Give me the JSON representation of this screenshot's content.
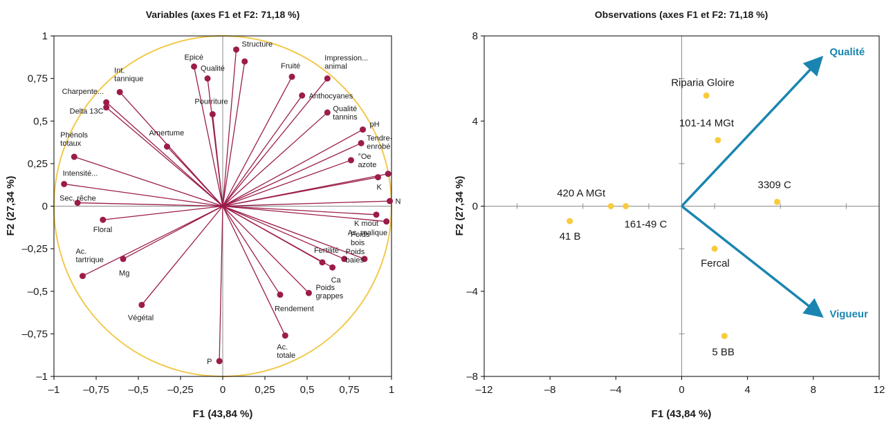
{
  "colors": {
    "vector": "#9b1c4a",
    "circle": "#f2c94c",
    "observation": "#f7cb3d",
    "arrow": "#1a85b0",
    "axis": "#8a8a8a"
  },
  "chart_data": [
    {
      "type": "scatter",
      "title": "Variables (axes F1 et F2: 71,18 %)",
      "xlabel": "F1 (43,84 %)",
      "ylabel": "F2 (27,34 %)",
      "xlim": [
        -1,
        1
      ],
      "ylim": [
        -1,
        1
      ],
      "xticks": [
        "–1",
        "–0,75",
        "–0,5",
        "–0,25",
        "0",
        "0,25",
        "0,5",
        "0,75",
        "1"
      ],
      "yticks": [
        "1",
        "0,75",
        "0,5",
        "0,25",
        "0",
        "–0,25",
        "–0,5",
        "–0,75",
        "–1"
      ],
      "unit_circle": true,
      "points": [
        {
          "label": "Structure",
          "x": 0.08,
          "y": 0.92
        },
        {
          "label": "Structure-2",
          "x": 0.13,
          "y": 0.85,
          "unlabeled": true
        },
        {
          "label": "Epicé",
          "x": -0.17,
          "y": 0.82
        },
        {
          "label": "Qualité",
          "x": -0.09,
          "y": 0.75
        },
        {
          "label": "Int. tannique",
          "x": -0.61,
          "y": 0.67
        },
        {
          "label": "Charpente...",
          "x": -0.69,
          "y": 0.61
        },
        {
          "label": "Delta 13C",
          "x": -0.69,
          "y": 0.58
        },
        {
          "label": "Pourriture",
          "x": -0.06,
          "y": 0.54
        },
        {
          "label": "Fruité",
          "x": 0.41,
          "y": 0.76
        },
        {
          "label": "Impression... animal",
          "x": 0.62,
          "y": 0.75
        },
        {
          "label": "Anthocyanes",
          "x": 0.47,
          "y": 0.65
        },
        {
          "label": "Qualité tannins",
          "x": 0.62,
          "y": 0.55
        },
        {
          "label": "pH",
          "x": 0.83,
          "y": 0.45
        },
        {
          "label": "Tendre-enrobé",
          "x": 0.82,
          "y": 0.37
        },
        {
          "label": "°Oe azote",
          "x": 0.76,
          "y": 0.27
        },
        {
          "label": "Amertume",
          "x": -0.33,
          "y": 0.35
        },
        {
          "label": "Phénols totaux",
          "x": -0.88,
          "y": 0.29
        },
        {
          "label": "Intensité...",
          "x": -0.94,
          "y": 0.13
        },
        {
          "label": "Sec, rêche",
          "x": -0.86,
          "y": 0.02
        },
        {
          "label": "K",
          "x": 0.92,
          "y": 0.17
        },
        {
          "label": "K-2",
          "x": 0.98,
          "y": 0.19,
          "unlabeled": true
        },
        {
          "label": "N",
          "x": 0.99,
          "y": 0.03
        },
        {
          "label": "K moût",
          "x": 0.91,
          "y": -0.05
        },
        {
          "label": "Ac. malique",
          "x": 0.97,
          "y": -0.09
        },
        {
          "label": "Floral",
          "x": -0.71,
          "y": -0.08
        },
        {
          "label": "Ac. tartrique",
          "x": -0.83,
          "y": -0.41
        },
        {
          "label": "Mg",
          "x": -0.59,
          "y": -0.31
        },
        {
          "label": "Fertilité",
          "x": 0.59,
          "y": -0.33
        },
        {
          "label": "Ca",
          "x": 0.65,
          "y": -0.36
        },
        {
          "label": "Poids bois",
          "x": 0.84,
          "y": -0.31
        },
        {
          "label": "Poids baies",
          "x": 0.72,
          "y": -0.31
        },
        {
          "label": "Poids grappes",
          "x": 0.51,
          "y": -0.51
        },
        {
          "label": "Rendement",
          "x": 0.34,
          "y": -0.52
        },
        {
          "label": "Végétal",
          "x": -0.48,
          "y": -0.58
        },
        {
          "label": "Ac. totale",
          "x": 0.37,
          "y": -0.76
        },
        {
          "label": "P",
          "x": -0.02,
          "y": -0.91
        }
      ]
    },
    {
      "type": "scatter",
      "title": "Observations (axes F1 et F2: 71,18 %)",
      "xlabel": "F1 (43,84 %)",
      "ylabel": "F2 (27,34 %)",
      "xlim": [
        -12,
        12
      ],
      "ylim": [
        -8,
        8
      ],
      "xticks": [
        "–12",
        "–8",
        "–4",
        "0",
        "4",
        "8",
        "12"
      ],
      "yticks": [
        "8",
        "4",
        "0",
        "–4",
        "–8"
      ],
      "points": [
        {
          "label": "Riparia Gloire",
          "x": 1.5,
          "y": 5.2
        },
        {
          "label": "101-14 MGt",
          "x": 2.2,
          "y": 3.1
        },
        {
          "label": "3309 C",
          "x": 5.8,
          "y": 0.2
        },
        {
          "label": "420 A MGt",
          "x": -4.3,
          "y": 0.0
        },
        {
          "label": "161-49 C",
          "x": -3.4,
          "y": 0.0
        },
        {
          "label": "41 B",
          "x": -6.8,
          "y": -0.7
        },
        {
          "label": "Fercal",
          "x": 2.0,
          "y": -2.0
        },
        {
          "label": "5 BB",
          "x": 2.6,
          "y": -6.1
        }
      ],
      "arrows": [
        {
          "label": "Qualité",
          "x": 8.4,
          "y": 6.9
        },
        {
          "label": "Vigueur",
          "x": 8.4,
          "y": -5.1
        }
      ]
    }
  ]
}
